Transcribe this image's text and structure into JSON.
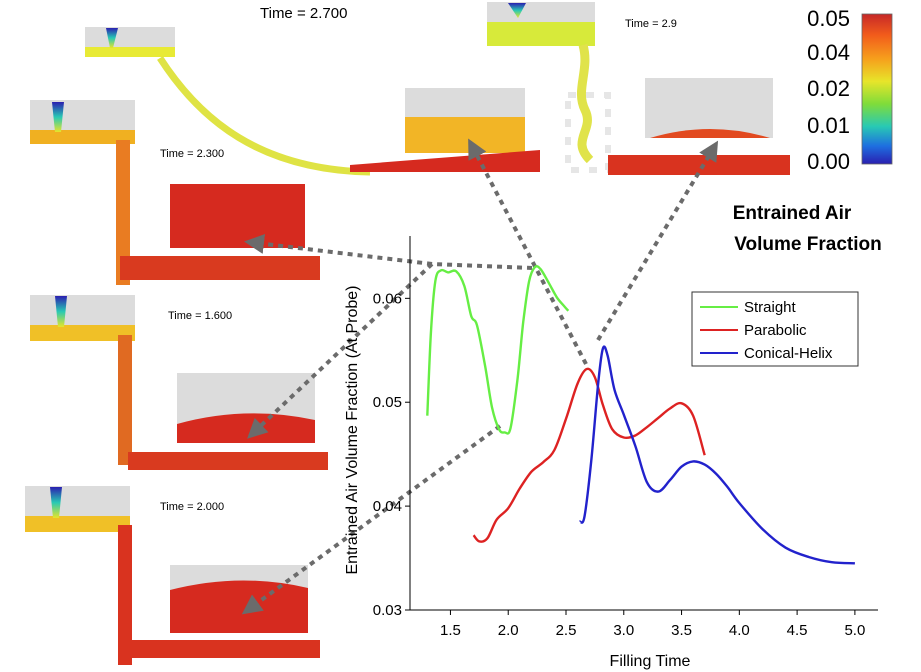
{
  "snapshots": {
    "t2700": "Time = 2.700",
    "t29": "Time = 2.9",
    "t2300": "Time = 2.300",
    "t1600": "Time = 1.600",
    "t2000": "Time = 2.000"
  },
  "colorbar": {
    "ticks": [
      "0.05",
      "0.04",
      "0.02",
      "0.01",
      "0.00"
    ],
    "title_line1": "Entrained Air",
    "title_line2": "Volume Fraction",
    "colors": [
      "#c62828",
      "#f25c1b",
      "#f6a01c",
      "#e7e52a",
      "#7fdc3a",
      "#28c9b4",
      "#1e6fe0",
      "#2a1fb0"
    ]
  },
  "chart_data": {
    "type": "line",
    "xlabel": "Filling Time",
    "ylabel": "Entrained Air Volume Fraction (At Probe)",
    "xlim": [
      1.15,
      5.2
    ],
    "ylim": [
      0.03,
      0.066
    ],
    "xticks": [
      "1.5",
      "2.0",
      "2.5",
      "3.0",
      "3.5",
      "4.0",
      "4.5",
      "5.0"
    ],
    "yticks": [
      "0.03",
      "0.04",
      "0.05",
      "0.06"
    ],
    "legend_position": "top-right",
    "series": [
      {
        "name": "Straight",
        "color": "#66ee44",
        "x": [
          1.3,
          1.33,
          1.37,
          1.42,
          1.48,
          1.55,
          1.62,
          1.68,
          1.73,
          1.8,
          1.86,
          1.92,
          1.97,
          2.02,
          2.08,
          2.13,
          2.18,
          2.23,
          2.28,
          2.35,
          2.42,
          2.48,
          2.52
        ],
        "y": [
          0.0487,
          0.0565,
          0.0617,
          0.0627,
          0.0625,
          0.0626,
          0.0612,
          0.0583,
          0.0574,
          0.0535,
          0.0495,
          0.0474,
          0.0471,
          0.0475,
          0.0522,
          0.0577,
          0.0616,
          0.063,
          0.0628,
          0.0615,
          0.0601,
          0.0593,
          0.0588
        ]
      },
      {
        "name": "Parabolic",
        "color": "#dd2222",
        "x": [
          1.7,
          1.75,
          1.82,
          1.9,
          2.0,
          2.1,
          2.2,
          2.3,
          2.4,
          2.5,
          2.6,
          2.68,
          2.75,
          2.82,
          2.9,
          3.0,
          3.1,
          3.2,
          3.3,
          3.4,
          3.5,
          3.6,
          3.7
        ],
        "y": [
          0.0372,
          0.0366,
          0.0369,
          0.0387,
          0.0398,
          0.0417,
          0.0433,
          0.0442,
          0.0454,
          0.0484,
          0.0518,
          0.0532,
          0.0524,
          0.0497,
          0.0474,
          0.0466,
          0.0468,
          0.0476,
          0.0485,
          0.0494,
          0.0499,
          0.0487,
          0.0449
        ]
      },
      {
        "name": "Conical-Helix",
        "color": "#2222cc",
        "x": [
          2.62,
          2.66,
          2.72,
          2.78,
          2.82,
          2.86,
          2.92,
          3.0,
          3.1,
          3.2,
          3.3,
          3.4,
          3.5,
          3.6,
          3.7,
          3.8,
          3.9,
          4.0,
          4.2,
          4.4,
          4.6,
          4.8,
          5.0
        ],
        "y": [
          0.0385,
          0.039,
          0.0445,
          0.052,
          0.0552,
          0.0545,
          0.0512,
          0.0488,
          0.0458,
          0.0423,
          0.0414,
          0.0425,
          0.0438,
          0.0443,
          0.044,
          0.0431,
          0.0418,
          0.0403,
          0.0378,
          0.036,
          0.0351,
          0.0346,
          0.0345
        ]
      }
    ]
  }
}
